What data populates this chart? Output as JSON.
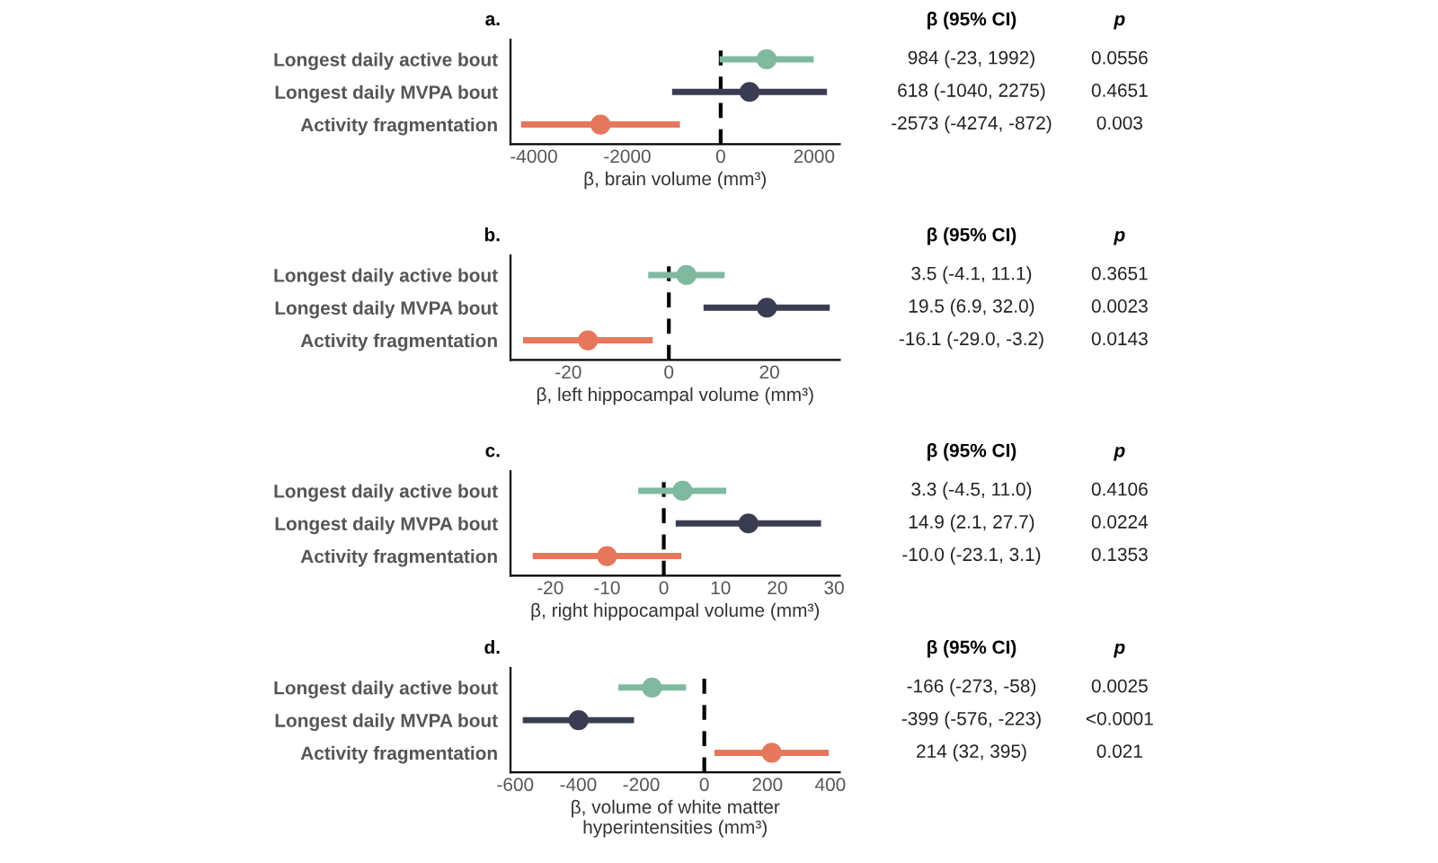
{
  "chart_data": [
    {
      "type": "scatter",
      "orientation": "horizontal",
      "title": "a.",
      "xlabel": "β, brain volume (mm³)",
      "categories": [
        "Longest daily active bout",
        "Longest daily MVPA bout",
        "Activity fragmentation"
      ],
      "values": [
        984,
        618,
        -2573
      ],
      "errors": [
        [
          -23,
          1992
        ],
        [
          -1040,
          2275
        ],
        [
          -4274,
          -872
        ]
      ],
      "colors": [
        "#7fb99f",
        "#3a3d52",
        "#e5775c"
      ],
      "annotations": [
        "β (95% CI)",
        "p",
        "984 (-23, 1992)",
        "0.0556",
        "618 (-1040, 2275)",
        "0.4651",
        "-2573 (-4274, -872)",
        "0.003"
      ],
      "marker": "circle",
      "xlim": [
        -4500,
        2550
      ],
      "xticks": [
        -4000,
        -2000,
        0,
        2000
      ],
      "ref_lines": [
        {
          "axis": "x",
          "value": 0,
          "color": "#000000",
          "line_style": "dashed"
        }
      ]
    },
    {
      "type": "scatter",
      "orientation": "horizontal",
      "title": "b.",
      "xlabel": "β, left hippocampal volume (mm³)",
      "categories": [
        "Longest daily active bout",
        "Longest daily MVPA bout",
        "Activity fragmentation"
      ],
      "values": [
        3.5,
        19.5,
        -16.1
      ],
      "errors": [
        [
          -4.1,
          11.1
        ],
        [
          6.9,
          32.0
        ],
        [
          -29.0,
          -3.2
        ]
      ],
      "colors": [
        "#7fb99f",
        "#3a3d52",
        "#e5775c"
      ],
      "annotations": [
        "β (95% CI)",
        "p",
        "3.5 (-4.1, 11.1)",
        "0.3651",
        "19.5 (6.9, 32.0)",
        "0.0023",
        "-16.1 (-29.0, -3.2)",
        "0.0143"
      ],
      "marker": "circle",
      "xlim": [
        -31.5,
        34
      ],
      "xticks": [
        -20,
        0,
        20
      ],
      "ref_lines": [
        {
          "axis": "x",
          "value": 0,
          "color": "#000000",
          "line_style": "dashed"
        }
      ]
    },
    {
      "type": "scatter",
      "orientation": "horizontal",
      "title": "c.",
      "xlabel": "β, right hippocampal volume (mm³)",
      "categories": [
        "Longest daily active bout",
        "Longest daily MVPA bout",
        "Activity fragmentation"
      ],
      "values": [
        3.3,
        14.9,
        -10.0
      ],
      "errors": [
        [
          -4.5,
          11.0
        ],
        [
          2.1,
          27.7
        ],
        [
          -23.1,
          3.1
        ]
      ],
      "colors": [
        "#7fb99f",
        "#3a3d52",
        "#e5775c"
      ],
      "annotations": [
        "β (95% CI)",
        "p",
        "3.3 (-4.5, 11.0)",
        "0.4106",
        "14.9 (2.1, 27.7)",
        "0.0224",
        "-10.0 (-23.1, 3.1)",
        "0.1353"
      ],
      "marker": "circle",
      "xlim": [
        -27,
        31
      ],
      "xticks": [
        -20,
        -10,
        0,
        10,
        20,
        30
      ],
      "ref_lines": [
        {
          "axis": "x",
          "value": 0,
          "color": "#000000",
          "line_style": "dashed"
        }
      ]
    },
    {
      "type": "scatter",
      "orientation": "horizontal",
      "title": "d.",
      "xlabel": "β, volume of white matter\nhyperintensities (mm³)",
      "categories": [
        "Longest daily active bout",
        "Longest daily MVPA bout",
        "Activity fragmentation"
      ],
      "values": [
        -166,
        -399,
        214
      ],
      "errors": [
        [
          -273,
          -58
        ],
        [
          -576,
          -223
        ],
        [
          32,
          395
        ]
      ],
      "colors": [
        "#7fb99f",
        "#3a3d52",
        "#e5775c"
      ],
      "annotations": [
        "β (95% CI)",
        "p",
        "-166 (-273, -58)",
        "0.0025",
        "-399 (-576, -223)",
        "<0.0001",
        "214 (32, 395)",
        "0.021"
      ],
      "marker": "circle",
      "xlim": [
        -615,
        430
      ],
      "xticks": [
        -600,
        -400,
        -200,
        0,
        200,
        400
      ],
      "ref_lines": [
        {
          "axis": "x",
          "value": 0,
          "color": "#000000",
          "line_style": "dashed"
        }
      ]
    }
  ]
}
